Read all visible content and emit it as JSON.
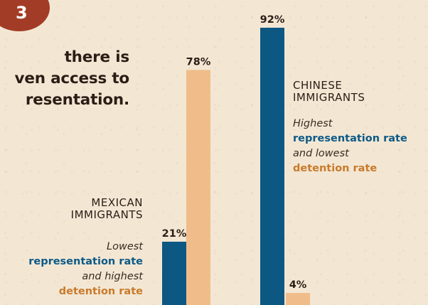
{
  "badge": "3",
  "headline": [
    "there is",
    "ven access to",
    "resentation."
  ],
  "colors": {
    "representation": "#0d5783",
    "detention": "#f0bd8a",
    "badge": "#a33c26"
  },
  "groups": {
    "mexican": {
      "label": [
        "MEXICAN",
        "IMMIGRANTS"
      ],
      "note": [
        "Lowest",
        "representation rate",
        "and highest",
        "detention rate"
      ]
    },
    "chinese": {
      "label": [
        "CHINESE",
        "IMMIGRANTS"
      ],
      "note": [
        "Highest",
        "representation rate",
        "and lowest",
        "detention rate"
      ]
    }
  },
  "chart_data": {
    "type": "bar",
    "categories": [
      "MEXICAN IMMIGRANTS",
      "CHINESE IMMIGRANTS"
    ],
    "series": [
      {
        "values": [
          21,
          92
        ]
      },
      {
        "values": [
          78,
          4
        ]
      }
    ],
    "value_labels": [
      [
        "21%",
        "92%"
      ],
      [
        "78%",
        "4%"
      ]
    ],
    "ylim": [
      0,
      100
    ]
  }
}
